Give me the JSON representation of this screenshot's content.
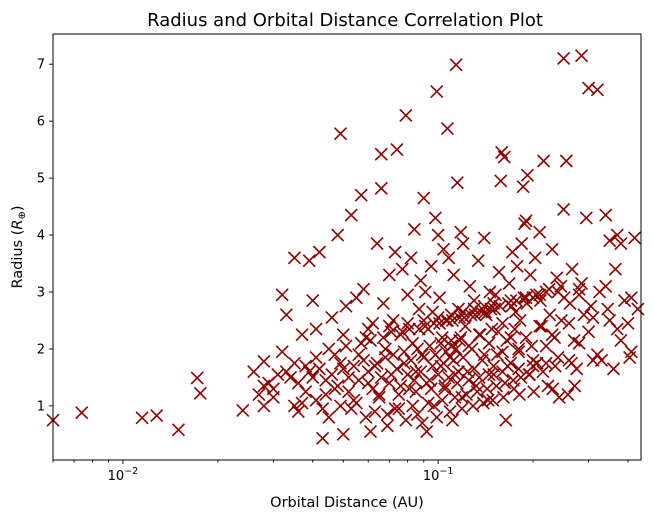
{
  "chart_data": {
    "type": "scatter",
    "title": "Radius and Orbital Distance Correlation Plot",
    "xlabel": "Orbital Distance (AU)",
    "ylabel_main": "Radius (",
    "ylabel_var": "R",
    "ylabel_sub": "⊕",
    "ylabel_end": ")",
    "xscale": "log",
    "xlim": [
      0.006,
      0.44
    ],
    "ylim": [
      0.05,
      7.53
    ],
    "grid": false,
    "marker": "x",
    "color": "#8b0000",
    "x_ticks": [
      {
        "value": 0.01,
        "base": "10",
        "exp": "−2"
      },
      {
        "value": 0.1,
        "base": "10",
        "exp": "−1"
      }
    ],
    "y_ticks": [
      {
        "value": 1,
        "label": "1"
      },
      {
        "value": 2,
        "label": "2"
      },
      {
        "value": 3,
        "label": "3"
      },
      {
        "value": 4,
        "label": "4"
      },
      {
        "value": 5,
        "label": "5"
      },
      {
        "value": 6,
        "label": "6"
      },
      {
        "value": 7,
        "label": "7"
      }
    ],
    "points": [
      [
        0.006,
        0.75
      ],
      [
        0.0074,
        0.88
      ],
      [
        0.0115,
        0.79
      ],
      [
        0.0128,
        0.83
      ],
      [
        0.015,
        0.58
      ],
      [
        0.0172,
        1.49
      ],
      [
        0.0176,
        1.22
      ],
      [
        0.024,
        0.92
      ],
      [
        0.026,
        1.6
      ],
      [
        0.027,
        1.2
      ],
      [
        0.028,
        1.78
      ],
      [
        0.028,
        1.0
      ],
      [
        0.029,
        1.4
      ],
      [
        0.03,
        1.3
      ],
      [
        0.031,
        1.55
      ],
      [
        0.032,
        2.95
      ],
      [
        0.032,
        1.95
      ],
      [
        0.033,
        2.6
      ],
      [
        0.034,
        1.5
      ],
      [
        0.035,
        3.6
      ],
      [
        0.035,
        1.0
      ],
      [
        0.036,
        0.9
      ],
      [
        0.037,
        2.25
      ],
      [
        0.038,
        1.25
      ],
      [
        0.039,
        3.55
      ],
      [
        0.039,
        1.6
      ],
      [
        0.04,
        2.85
      ],
      [
        0.041,
        2.35
      ],
      [
        0.041,
        1.1
      ],
      [
        0.042,
        3.7
      ],
      [
        0.043,
        0.43
      ],
      [
        0.044,
        1.45
      ],
      [
        0.045,
        0.8
      ],
      [
        0.046,
        2.55
      ],
      [
        0.047,
        1.3
      ],
      [
        0.048,
        4.0
      ],
      [
        0.049,
        5.78
      ],
      [
        0.049,
        1.75
      ],
      [
        0.05,
        0.5
      ],
      [
        0.051,
        2.75
      ],
      [
        0.052,
        1.5
      ],
      [
        0.053,
        4.35
      ],
      [
        0.054,
        1.1
      ],
      [
        0.055,
        2.9
      ],
      [
        0.056,
        1.9
      ],
      [
        0.057,
        4.7
      ],
      [
        0.058,
        3.05
      ],
      [
        0.059,
        2.2
      ],
      [
        0.06,
        1.4
      ],
      [
        0.061,
        0.55
      ],
      [
        0.062,
        2.45
      ],
      [
        0.063,
        1.7
      ],
      [
        0.064,
        3.85
      ],
      [
        0.065,
        1.2
      ],
      [
        0.066,
        5.42
      ],
      [
        0.066,
        4.82
      ],
      [
        0.067,
        2.8
      ],
      [
        0.068,
        2.0
      ],
      [
        0.069,
        0.65
      ],
      [
        0.07,
        3.3
      ],
      [
        0.071,
        1.55
      ],
      [
        0.072,
        2.5
      ],
      [
        0.073,
        3.7
      ],
      [
        0.074,
        5.5
      ],
      [
        0.075,
        0.95
      ],
      [
        0.076,
        2.25
      ],
      [
        0.077,
        3.4
      ],
      [
        0.078,
        1.75
      ],
      [
        0.079,
        6.1
      ],
      [
        0.08,
        2.95
      ],
      [
        0.081,
        1.3
      ],
      [
        0.082,
        3.6
      ],
      [
        0.083,
        2.1
      ],
      [
        0.084,
        4.1
      ],
      [
        0.085,
        1.6
      ],
      [
        0.086,
        0.85
      ],
      [
        0.087,
        2.7
      ],
      [
        0.088,
        3.2
      ],
      [
        0.089,
        1.9
      ],
      [
        0.09,
        4.65
      ],
      [
        0.091,
        3.0
      ],
      [
        0.092,
        0.55
      ],
      [
        0.093,
        2.35
      ],
      [
        0.094,
        1.45
      ],
      [
        0.095,
        3.45
      ],
      [
        0.096,
        2.65
      ],
      [
        0.097,
        1.0
      ],
      [
        0.098,
        4.3
      ],
      [
        0.099,
        6.52
      ],
      [
        0.1,
        4.0
      ],
      [
        0.101,
        2.9
      ],
      [
        0.102,
        1.7
      ],
      [
        0.103,
        2.2
      ],
      [
        0.104,
        3.75
      ],
      [
        0.105,
        1.3
      ],
      [
        0.106,
        2.5
      ],
      [
        0.107,
        5.87
      ],
      [
        0.108,
        3.6
      ],
      [
        0.109,
        1.85
      ],
      [
        0.11,
        2.05
      ],
      [
        0.111,
        0.75
      ],
      [
        0.112,
        3.3
      ],
      [
        0.113,
        1.55
      ],
      [
        0.114,
        6.99
      ],
      [
        0.115,
        4.92
      ],
      [
        0.116,
        2.7
      ],
      [
        0.117,
        2.15
      ],
      [
        0.118,
        4.05
      ],
      [
        0.119,
        1.15
      ],
      [
        0.12,
        3.85
      ],
      [
        0.122,
        2.4
      ],
      [
        0.124,
        1.6
      ],
      [
        0.126,
        3.1
      ],
      [
        0.128,
        2.0
      ],
      [
        0.13,
        2.85
      ],
      [
        0.132,
        1.35
      ],
      [
        0.134,
        3.55
      ],
      [
        0.136,
        2.25
      ],
      [
        0.138,
        1.8
      ],
      [
        0.14,
        3.95
      ],
      [
        0.142,
        2.6
      ],
      [
        0.144,
        1.1
      ],
      [
        0.146,
        3.0
      ],
      [
        0.148,
        2.35
      ],
      [
        0.15,
        1.55
      ],
      [
        0.152,
        2.95
      ],
      [
        0.154,
        1.9
      ],
      [
        0.156,
        3.35
      ],
      [
        0.158,
        4.95
      ],
      [
        0.159,
        5.45
      ],
      [
        0.16,
        2.45
      ],
      [
        0.162,
        5.37
      ],
      [
        0.164,
        0.75
      ],
      [
        0.166,
        1.7
      ],
      [
        0.168,
        3.15
      ],
      [
        0.17,
        2.2
      ],
      [
        0.172,
        3.7
      ],
      [
        0.174,
        1.3
      ],
      [
        0.176,
        2.65
      ],
      [
        0.178,
        3.45
      ],
      [
        0.18,
        1.95
      ],
      [
        0.182,
        2.5
      ],
      [
        0.184,
        3.85
      ],
      [
        0.186,
        4.85
      ],
      [
        0.188,
        4.2
      ],
      [
        0.19,
        4.25
      ],
      [
        0.192,
        5.05
      ],
      [
        0.194,
        1.55
      ],
      [
        0.196,
        3.3
      ],
      [
        0.198,
        2.05
      ],
      [
        0.2,
        2.9
      ],
      [
        0.203,
        3.6
      ],
      [
        0.206,
        1.75
      ],
      [
        0.21,
        4.05
      ],
      [
        0.213,
        2.4
      ],
      [
        0.216,
        5.3
      ],
      [
        0.22,
        3.0
      ],
      [
        0.223,
        1.35
      ],
      [
        0.226,
        2.6
      ],
      [
        0.23,
        3.75
      ],
      [
        0.234,
        2.2
      ],
      [
        0.238,
        3.25
      ],
      [
        0.242,
        1.15
      ],
      [
        0.246,
        2.5
      ],
      [
        0.25,
        7.1
      ],
      [
        0.25,
        4.45
      ],
      [
        0.255,
        5.3
      ],
      [
        0.258,
        1.2
      ],
      [
        0.262,
        2.8
      ],
      [
        0.266,
        3.4
      ],
      [
        0.27,
        2.15
      ],
      [
        0.275,
        1.65
      ],
      [
        0.28,
        2.95
      ],
      [
        0.285,
        7.15
      ],
      [
        0.29,
        2.6
      ],
      [
        0.295,
        4.3
      ],
      [
        0.3,
        6.58
      ],
      [
        0.305,
        2.75
      ],
      [
        0.31,
        1.8
      ],
      [
        0.32,
        6.55
      ],
      [
        0.325,
        3.0
      ],
      [
        0.33,
        1.8
      ],
      [
        0.34,
        4.35
      ],
      [
        0.345,
        2.7
      ],
      [
        0.35,
        3.9
      ],
      [
        0.36,
        1.65
      ],
      [
        0.365,
        3.4
      ],
      [
        0.37,
        4.0
      ],
      [
        0.38,
        3.85
      ],
      [
        0.39,
        2.85
      ],
      [
        0.4,
        2.45
      ],
      [
        0.405,
        1.85
      ],
      [
        0.41,
        2.9
      ],
      [
        0.42,
        3.95
      ],
      [
        0.43,
        2.7
      ],
      [
        0.028,
        1.35
      ],
      [
        0.03,
        1.15
      ],
      [
        0.033,
        1.6
      ],
      [
        0.036,
        1.4
      ],
      [
        0.038,
        1.7
      ],
      [
        0.04,
        1.5
      ],
      [
        0.042,
        1.65
      ],
      [
        0.044,
        1.2
      ],
      [
        0.046,
        1.55
      ],
      [
        0.048,
        1.35
      ],
      [
        0.05,
        1.65
      ],
      [
        0.052,
        1.25
      ],
      [
        0.054,
        1.7
      ],
      [
        0.056,
        1.45
      ],
      [
        0.058,
        1.8
      ],
      [
        0.06,
        1.6
      ],
      [
        0.062,
        1.3
      ],
      [
        0.064,
        1.75
      ],
      [
        0.066,
        1.5
      ],
      [
        0.068,
        1.85
      ],
      [
        0.07,
        1.4
      ],
      [
        0.072,
        1.9
      ],
      [
        0.074,
        1.65
      ],
      [
        0.076,
        1.35
      ],
      [
        0.078,
        1.95
      ],
      [
        0.08,
        1.55
      ],
      [
        0.082,
        1.8
      ],
      [
        0.084,
        1.45
      ],
      [
        0.086,
        2.0
      ],
      [
        0.088,
        1.6
      ],
      [
        0.09,
        1.85
      ],
      [
        0.092,
        1.4
      ],
      [
        0.094,
        2.05
      ],
      [
        0.096,
        1.7
      ],
      [
        0.098,
        1.9
      ],
      [
        0.1,
        1.55
      ],
      [
        0.102,
        2.1
      ],
      [
        0.104,
        1.75
      ],
      [
        0.106,
        1.95
      ],
      [
        0.108,
        1.5
      ],
      [
        0.11,
        2.15
      ],
      [
        0.112,
        1.8
      ],
      [
        0.114,
        2.0
      ],
      [
        0.116,
        1.6
      ],
      [
        0.118,
        2.2
      ],
      [
        0.12,
        1.85
      ],
      [
        0.125,
        2.05
      ],
      [
        0.13,
        1.65
      ],
      [
        0.135,
        2.25
      ],
      [
        0.14,
        1.9
      ],
      [
        0.145,
        2.1
      ],
      [
        0.15,
        1.7
      ],
      [
        0.155,
        2.3
      ],
      [
        0.16,
        1.95
      ],
      [
        0.165,
        2.15
      ],
      [
        0.17,
        1.75
      ],
      [
        0.175,
        2.35
      ],
      [
        0.18,
        2.0
      ],
      [
        0.19,
        2.2
      ],
      [
        0.2,
        1.8
      ],
      [
        0.21,
        2.4
      ],
      [
        0.22,
        2.05
      ],
      [
        0.23,
        2.25
      ],
      [
        0.24,
        1.85
      ],
      [
        0.26,
        2.45
      ],
      [
        0.28,
        2.1
      ],
      [
        0.3,
        2.3
      ],
      [
        0.32,
        1.9
      ],
      [
        0.35,
        2.5
      ],
      [
        0.38,
        2.15
      ],
      [
        0.41,
        1.95
      ],
      [
        0.045,
        2.0
      ],
      [
        0.05,
        2.25
      ],
      [
        0.055,
        1.05
      ],
      [
        0.06,
        2.35
      ],
      [
        0.065,
        1.15
      ],
      [
        0.07,
        2.4
      ],
      [
        0.075,
        1.2
      ],
      [
        0.08,
        2.45
      ],
      [
        0.085,
        1.25
      ],
      [
        0.09,
        2.5
      ],
      [
        0.095,
        1.3
      ],
      [
        0.1,
        2.55
      ],
      [
        0.105,
        1.35
      ],
      [
        0.11,
        2.6
      ],
      [
        0.115,
        1.4
      ],
      [
        0.12,
        2.65
      ],
      [
        0.125,
        1.45
      ],
      [
        0.13,
        2.7
      ],
      [
        0.135,
        1.5
      ],
      [
        0.14,
        2.75
      ],
      [
        0.145,
        1.55
      ],
      [
        0.15,
        2.8
      ],
      [
        0.16,
        1.6
      ],
      [
        0.17,
        2.85
      ],
      [
        0.18,
        1.65
      ],
      [
        0.19,
        2.9
      ],
      [
        0.2,
        1.7
      ],
      [
        0.21,
        2.95
      ],
      [
        0.22,
        1.75
      ],
      [
        0.24,
        3.0
      ],
      [
        0.26,
        1.8
      ],
      [
        0.28,
        3.05
      ],
      [
        0.31,
        2.55
      ],
      [
        0.34,
        3.1
      ],
      [
        0.37,
        2.35
      ],
      [
        0.053,
        0.95
      ],
      [
        0.057,
        2.1
      ],
      [
        0.063,
        0.9
      ],
      [
        0.067,
        2.2
      ],
      [
        0.073,
        0.95
      ],
      [
        0.077,
        2.3
      ],
      [
        0.083,
        1.0
      ],
      [
        0.087,
        2.35
      ],
      [
        0.093,
        1.05
      ],
      [
        0.097,
        2.45
      ],
      [
        0.103,
        1.1
      ],
      [
        0.107,
        2.5
      ],
      [
        0.113,
        1.15
      ],
      [
        0.117,
        2.55
      ],
      [
        0.123,
        1.2
      ],
      [
        0.127,
        2.6
      ],
      [
        0.133,
        1.25
      ],
      [
        0.137,
        2.65
      ],
      [
        0.143,
        1.3
      ],
      [
        0.147,
        2.7
      ],
      [
        0.153,
        1.35
      ],
      [
        0.157,
        2.75
      ],
      [
        0.163,
        1.4
      ],
      [
        0.167,
        2.8
      ],
      [
        0.173,
        1.45
      ],
      [
        0.177,
        2.85
      ],
      [
        0.183,
        1.5
      ],
      [
        0.187,
        2.9
      ],
      [
        0.195,
        1.55
      ],
      [
        0.205,
        2.95
      ],
      [
        0.215,
        1.6
      ],
      [
        0.225,
        3.05
      ],
      [
        0.235,
        1.7
      ],
      [
        0.245,
        3.1
      ],
      [
        0.265,
        1.75
      ],
      [
        0.285,
        3.15
      ],
      [
        0.035,
        1.75
      ],
      [
        0.037,
        1.05
      ],
      [
        0.041,
        1.85
      ],
      [
        0.043,
        0.95
      ],
      [
        0.047,
        1.9
      ],
      [
        0.049,
        1.0
      ],
      [
        0.051,
        2.05
      ],
      [
        0.059,
        0.8
      ],
      [
        0.061,
        2.15
      ],
      [
        0.069,
        0.85
      ],
      [
        0.071,
        2.3
      ],
      [
        0.079,
        0.75
      ],
      [
        0.081,
        2.35
      ],
      [
        0.089,
        0.7
      ],
      [
        0.091,
        2.4
      ],
      [
        0.099,
        0.8
      ],
      [
        0.101,
        2.45
      ],
      [
        0.109,
        0.9
      ],
      [
        0.111,
        2.5
      ],
      [
        0.119,
        0.95
      ],
      [
        0.121,
        2.55
      ],
      [
        0.129,
        1.0
      ],
      [
        0.131,
        2.6
      ],
      [
        0.139,
        1.05
      ],
      [
        0.141,
        2.65
      ],
      [
        0.149,
        1.1
      ],
      [
        0.151,
        2.7
      ],
      [
        0.161,
        1.15
      ],
      [
        0.171,
        2.75
      ],
      [
        0.181,
        1.2
      ],
      [
        0.191,
        2.8
      ],
      [
        0.201,
        1.25
      ],
      [
        0.211,
        2.85
      ],
      [
        0.231,
        1.3
      ],
      [
        0.251,
        2.9
      ],
      [
        0.271,
        1.35
      ]
    ]
  }
}
